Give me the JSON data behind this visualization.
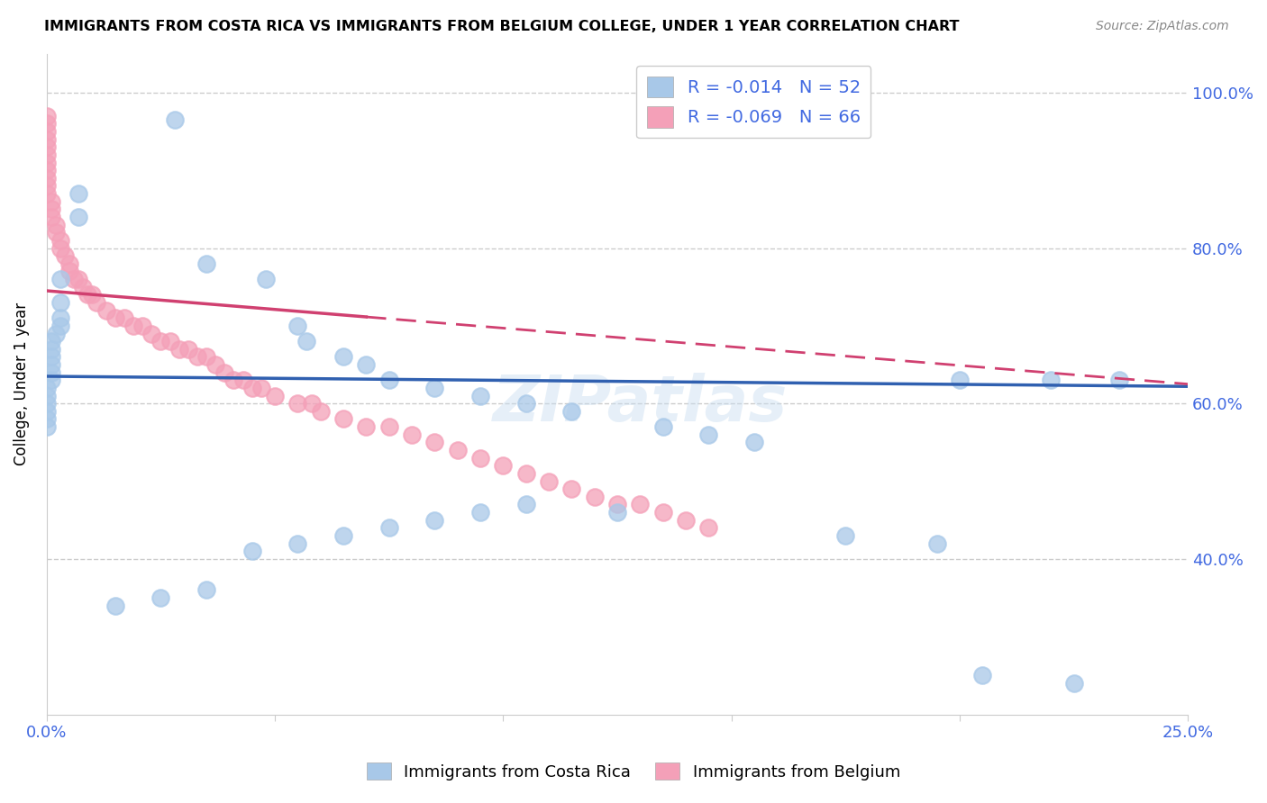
{
  "title": "IMMIGRANTS FROM COSTA RICA VS IMMIGRANTS FROM BELGIUM COLLEGE, UNDER 1 YEAR CORRELATION CHART",
  "source": "Source: ZipAtlas.com",
  "ylabel": "College, Under 1 year",
  "ytick_labels": [
    "100.0%",
    "80.0%",
    "60.0%",
    "40.0%"
  ],
  "ytick_positions": [
    1.0,
    0.8,
    0.6,
    0.4
  ],
  "xlim": [
    0.0,
    0.25
  ],
  "ylim": [
    0.2,
    1.05
  ],
  "legend_r_blue": "-0.014",
  "legend_n_blue": "52",
  "legend_r_pink": "-0.069",
  "legend_n_pink": "66",
  "color_blue": "#a8c8e8",
  "color_pink": "#f4a0b8",
  "trendline_color_blue": "#3060b0",
  "trendline_color_pink": "#d04070",
  "watermark": "ZIPatlas",
  "blue_trendline": [
    0.635,
    0.622
  ],
  "pink_trendline_solid_end_x": 0.07,
  "pink_trendline": [
    0.745,
    0.625
  ],
  "blue_x": [
    0.028,
    0.007,
    0.007,
    0.003,
    0.003,
    0.003,
    0.003,
    0.002,
    0.001,
    0.001,
    0.001,
    0.001,
    0.001,
    0.001,
    0.0,
    0.0,
    0.0,
    0.0,
    0.0,
    0.0,
    0.035,
    0.048,
    0.055,
    0.057,
    0.065,
    0.07,
    0.075,
    0.085,
    0.095,
    0.105,
    0.115,
    0.135,
    0.145,
    0.155,
    0.105,
    0.095,
    0.085,
    0.075,
    0.065,
    0.055,
    0.045,
    0.035,
    0.025,
    0.015,
    0.125,
    0.175,
    0.195,
    0.205,
    0.225,
    0.235,
    0.22,
    0.2
  ],
  "blue_y": [
    0.965,
    0.87,
    0.84,
    0.76,
    0.73,
    0.71,
    0.7,
    0.69,
    0.68,
    0.67,
    0.66,
    0.65,
    0.64,
    0.63,
    0.62,
    0.61,
    0.6,
    0.59,
    0.58,
    0.57,
    0.78,
    0.76,
    0.7,
    0.68,
    0.66,
    0.65,
    0.63,
    0.62,
    0.61,
    0.6,
    0.59,
    0.57,
    0.56,
    0.55,
    0.47,
    0.46,
    0.45,
    0.44,
    0.43,
    0.42,
    0.41,
    0.36,
    0.35,
    0.34,
    0.46,
    0.43,
    0.42,
    0.25,
    0.24,
    0.63,
    0.63,
    0.63
  ],
  "pink_x": [
    0.0,
    0.0,
    0.0,
    0.0,
    0.0,
    0.0,
    0.0,
    0.0,
    0.0,
    0.0,
    0.0,
    0.001,
    0.001,
    0.001,
    0.002,
    0.002,
    0.003,
    0.003,
    0.004,
    0.005,
    0.005,
    0.006,
    0.007,
    0.008,
    0.009,
    0.01,
    0.011,
    0.013,
    0.015,
    0.017,
    0.019,
    0.021,
    0.023,
    0.025,
    0.027,
    0.029,
    0.031,
    0.033,
    0.035,
    0.037,
    0.039,
    0.041,
    0.043,
    0.045,
    0.047,
    0.05,
    0.055,
    0.058,
    0.06,
    0.065,
    0.07,
    0.075,
    0.08,
    0.085,
    0.09,
    0.095,
    0.1,
    0.105,
    0.11,
    0.115,
    0.12,
    0.125,
    0.13,
    0.135,
    0.14,
    0.145
  ],
  "pink_y": [
    0.97,
    0.96,
    0.95,
    0.94,
    0.93,
    0.92,
    0.91,
    0.9,
    0.89,
    0.88,
    0.87,
    0.86,
    0.85,
    0.84,
    0.83,
    0.82,
    0.81,
    0.8,
    0.79,
    0.78,
    0.77,
    0.76,
    0.76,
    0.75,
    0.74,
    0.74,
    0.73,
    0.72,
    0.71,
    0.71,
    0.7,
    0.7,
    0.69,
    0.68,
    0.68,
    0.67,
    0.67,
    0.66,
    0.66,
    0.65,
    0.64,
    0.63,
    0.63,
    0.62,
    0.62,
    0.61,
    0.6,
    0.6,
    0.59,
    0.58,
    0.57,
    0.57,
    0.56,
    0.55,
    0.54,
    0.53,
    0.52,
    0.51,
    0.5,
    0.49,
    0.48,
    0.47,
    0.47,
    0.46,
    0.45,
    0.44
  ]
}
